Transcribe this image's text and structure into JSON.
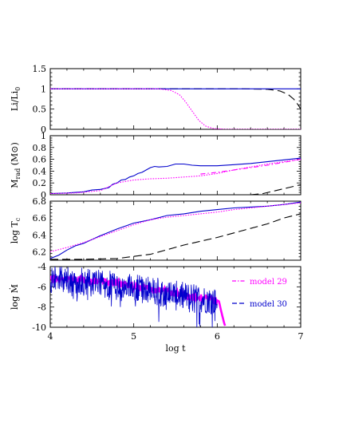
{
  "chart_data": [
    {
      "type": "line",
      "ylabel": "Li/Li",
      "ylabel_sub": "0",
      "xlim": [
        4,
        7
      ],
      "ylim": [
        0,
        1.5
      ],
      "yticks": [
        "0",
        "0.5",
        "1",
        "1.5"
      ],
      "series": [
        {
          "color": "#000000",
          "dash": "long-dash",
          "x": [
            4,
            6.3,
            6.6,
            6.75,
            6.85,
            6.92,
            6.97,
            7.0
          ],
          "y": [
            1,
            1,
            0.99,
            0.95,
            0.86,
            0.74,
            0.6,
            0.5
          ]
        },
        {
          "color": "#0000cc",
          "dash": "solid",
          "x": [
            4,
            7.0
          ],
          "y": [
            1,
            1
          ]
        },
        {
          "color": "#ff00ff",
          "dash": "dotted",
          "x": [
            4,
            5.3,
            5.45,
            5.55,
            5.62,
            5.7,
            5.78,
            5.86,
            5.95,
            6.1,
            7.0
          ],
          "y": [
            1,
            1,
            0.96,
            0.85,
            0.68,
            0.45,
            0.22,
            0.08,
            0.02,
            0,
            0
          ]
        }
      ]
    },
    {
      "type": "line",
      "ylabel": "M",
      "ylabel_sub": "rad",
      "ylabel_unit": "(M⊙)",
      "xlim": [
        4,
        7
      ],
      "ylim": [
        0,
        1
      ],
      "yticks": [
        "0",
        "0.2",
        "0.4",
        "0.6",
        "0.8",
        "1"
      ],
      "series": [
        {
          "color": "#000000",
          "dash": "long-dash",
          "x": [
            6.4,
            6.55,
            6.7,
            6.85,
            7.0
          ],
          "y": [
            0.0,
            0.02,
            0.07,
            0.12,
            0.17
          ]
        },
        {
          "color": "#0000cc",
          "dash": "solid",
          "x": [
            4.0,
            4.2,
            4.4,
            4.5,
            4.6,
            4.7,
            4.75,
            4.8,
            4.85,
            4.9,
            4.95,
            5.0,
            5.05,
            5.1,
            5.15,
            5.2,
            5.25,
            5.3,
            5.4,
            5.5,
            5.6,
            5.7,
            5.8,
            6.0,
            6.2,
            6.4,
            6.6,
            6.8,
            7.0
          ],
          "y": [
            0.02,
            0.03,
            0.05,
            0.08,
            0.09,
            0.12,
            0.18,
            0.2,
            0.25,
            0.26,
            0.3,
            0.32,
            0.36,
            0.38,
            0.42,
            0.46,
            0.48,
            0.47,
            0.48,
            0.52,
            0.52,
            0.5,
            0.49,
            0.49,
            0.51,
            0.53,
            0.56,
            0.59,
            0.62
          ]
        },
        {
          "color": "#ff00ff",
          "dash": "dotted",
          "x": [
            4.0,
            4.3,
            4.6,
            4.8,
            5.0,
            5.2,
            5.4,
            5.6,
            5.8,
            6.0,
            6.2,
            6.4,
            6.6,
            6.8,
            7.0
          ],
          "y": [
            0.02,
            0.03,
            0.07,
            0.2,
            0.25,
            0.27,
            0.28,
            0.3,
            0.32,
            0.36,
            0.42,
            0.47,
            0.52,
            0.56,
            0.6
          ]
        },
        {
          "color": "#ff00ff",
          "dash": "dash-dot",
          "x": [
            5.8,
            6.0,
            6.2,
            6.4,
            6.6,
            6.8,
            7.0
          ],
          "y": [
            0.35,
            0.38,
            0.42,
            0.46,
            0.5,
            0.55,
            0.6
          ]
        }
      ]
    },
    {
      "type": "line",
      "ylabel": "log T",
      "ylabel_sub": "c",
      "xlim": [
        4,
        7
      ],
      "ylim": [
        6.1,
        6.8
      ],
      "yticks": [
        "6.2",
        "6.4",
        "6.6",
        "6.8"
      ],
      "series": [
        {
          "color": "#000000",
          "dash": "long-dash",
          "x": [
            4.0,
            4.4,
            4.8,
            5.2,
            5.6,
            6.0,
            6.3,
            6.6,
            6.8,
            7.0
          ],
          "y": [
            6.11,
            6.11,
            6.12,
            6.17,
            6.28,
            6.37,
            6.45,
            6.53,
            6.6,
            6.65
          ]
        },
        {
          "color": "#0000cc",
          "dash": "solid",
          "x": [
            4.0,
            4.1,
            4.2,
            4.3,
            4.4,
            4.6,
            4.8,
            5.0,
            5.2,
            5.4,
            5.6,
            5.8,
            6.0,
            6.2,
            6.4,
            6.6,
            6.8,
            7.0
          ],
          "y": [
            6.12,
            6.16,
            6.22,
            6.27,
            6.3,
            6.39,
            6.47,
            6.54,
            6.58,
            6.63,
            6.65,
            6.68,
            6.7,
            6.72,
            6.73,
            6.74,
            6.76,
            6.79
          ]
        },
        {
          "color": "#ff00ff",
          "dash": "dotted",
          "x": [
            4.0,
            4.2,
            4.4,
            4.6,
            4.8,
            5.0,
            5.2,
            5.4,
            5.6,
            5.8,
            6.0,
            6.2,
            6.4,
            6.6,
            6.8,
            7.0
          ],
          "y": [
            6.2,
            6.25,
            6.31,
            6.38,
            6.45,
            6.52,
            6.58,
            6.61,
            6.63,
            6.65,
            6.67,
            6.7,
            6.72,
            6.74,
            6.76,
            6.78
          ]
        }
      ]
    },
    {
      "type": "line",
      "xlabel": "log t",
      "ylabel": "log Ṁ",
      "xlim": [
        4,
        7
      ],
      "ylim": [
        -10,
        -4
      ],
      "xticks": [
        "4",
        "5",
        "6",
        "7"
      ],
      "yticks": [
        "-10",
        "-8",
        "-6",
        "-4"
      ],
      "legend": {
        "placement": "right",
        "entries": [
          {
            "label": "model 29",
            "color": "#ff00ff"
          },
          {
            "label": "model 30",
            "color": "#0000cc"
          }
        ]
      },
      "series": [
        {
          "name": "model 29",
          "color": "#ff00ff",
          "dash": "dash-dot",
          "x": [
            4.0,
            4.3,
            4.7,
            4.8,
            5.0,
            5.2,
            5.4,
            5.6,
            5.8,
            5.95,
            6.02,
            6.05,
            6.08,
            6.1
          ],
          "y": [
            -5.2,
            -5.3,
            -5.5,
            -5.6,
            -5.9,
            -6.2,
            -6.5,
            -6.8,
            -7.1,
            -7.3,
            -7.4,
            -8.5,
            -9.5,
            -10
          ]
        },
        {
          "name": "model 30",
          "color": "#0000cc",
          "dash": "solid",
          "x": [
            4.0,
            4.4,
            4.8,
            5.2,
            5.6,
            5.9,
            6.0
          ],
          "y": [
            -5.3,
            -5.5,
            -5.9,
            -6.4,
            -6.9,
            -7.3,
            -7.5
          ]
        }
      ]
    }
  ]
}
